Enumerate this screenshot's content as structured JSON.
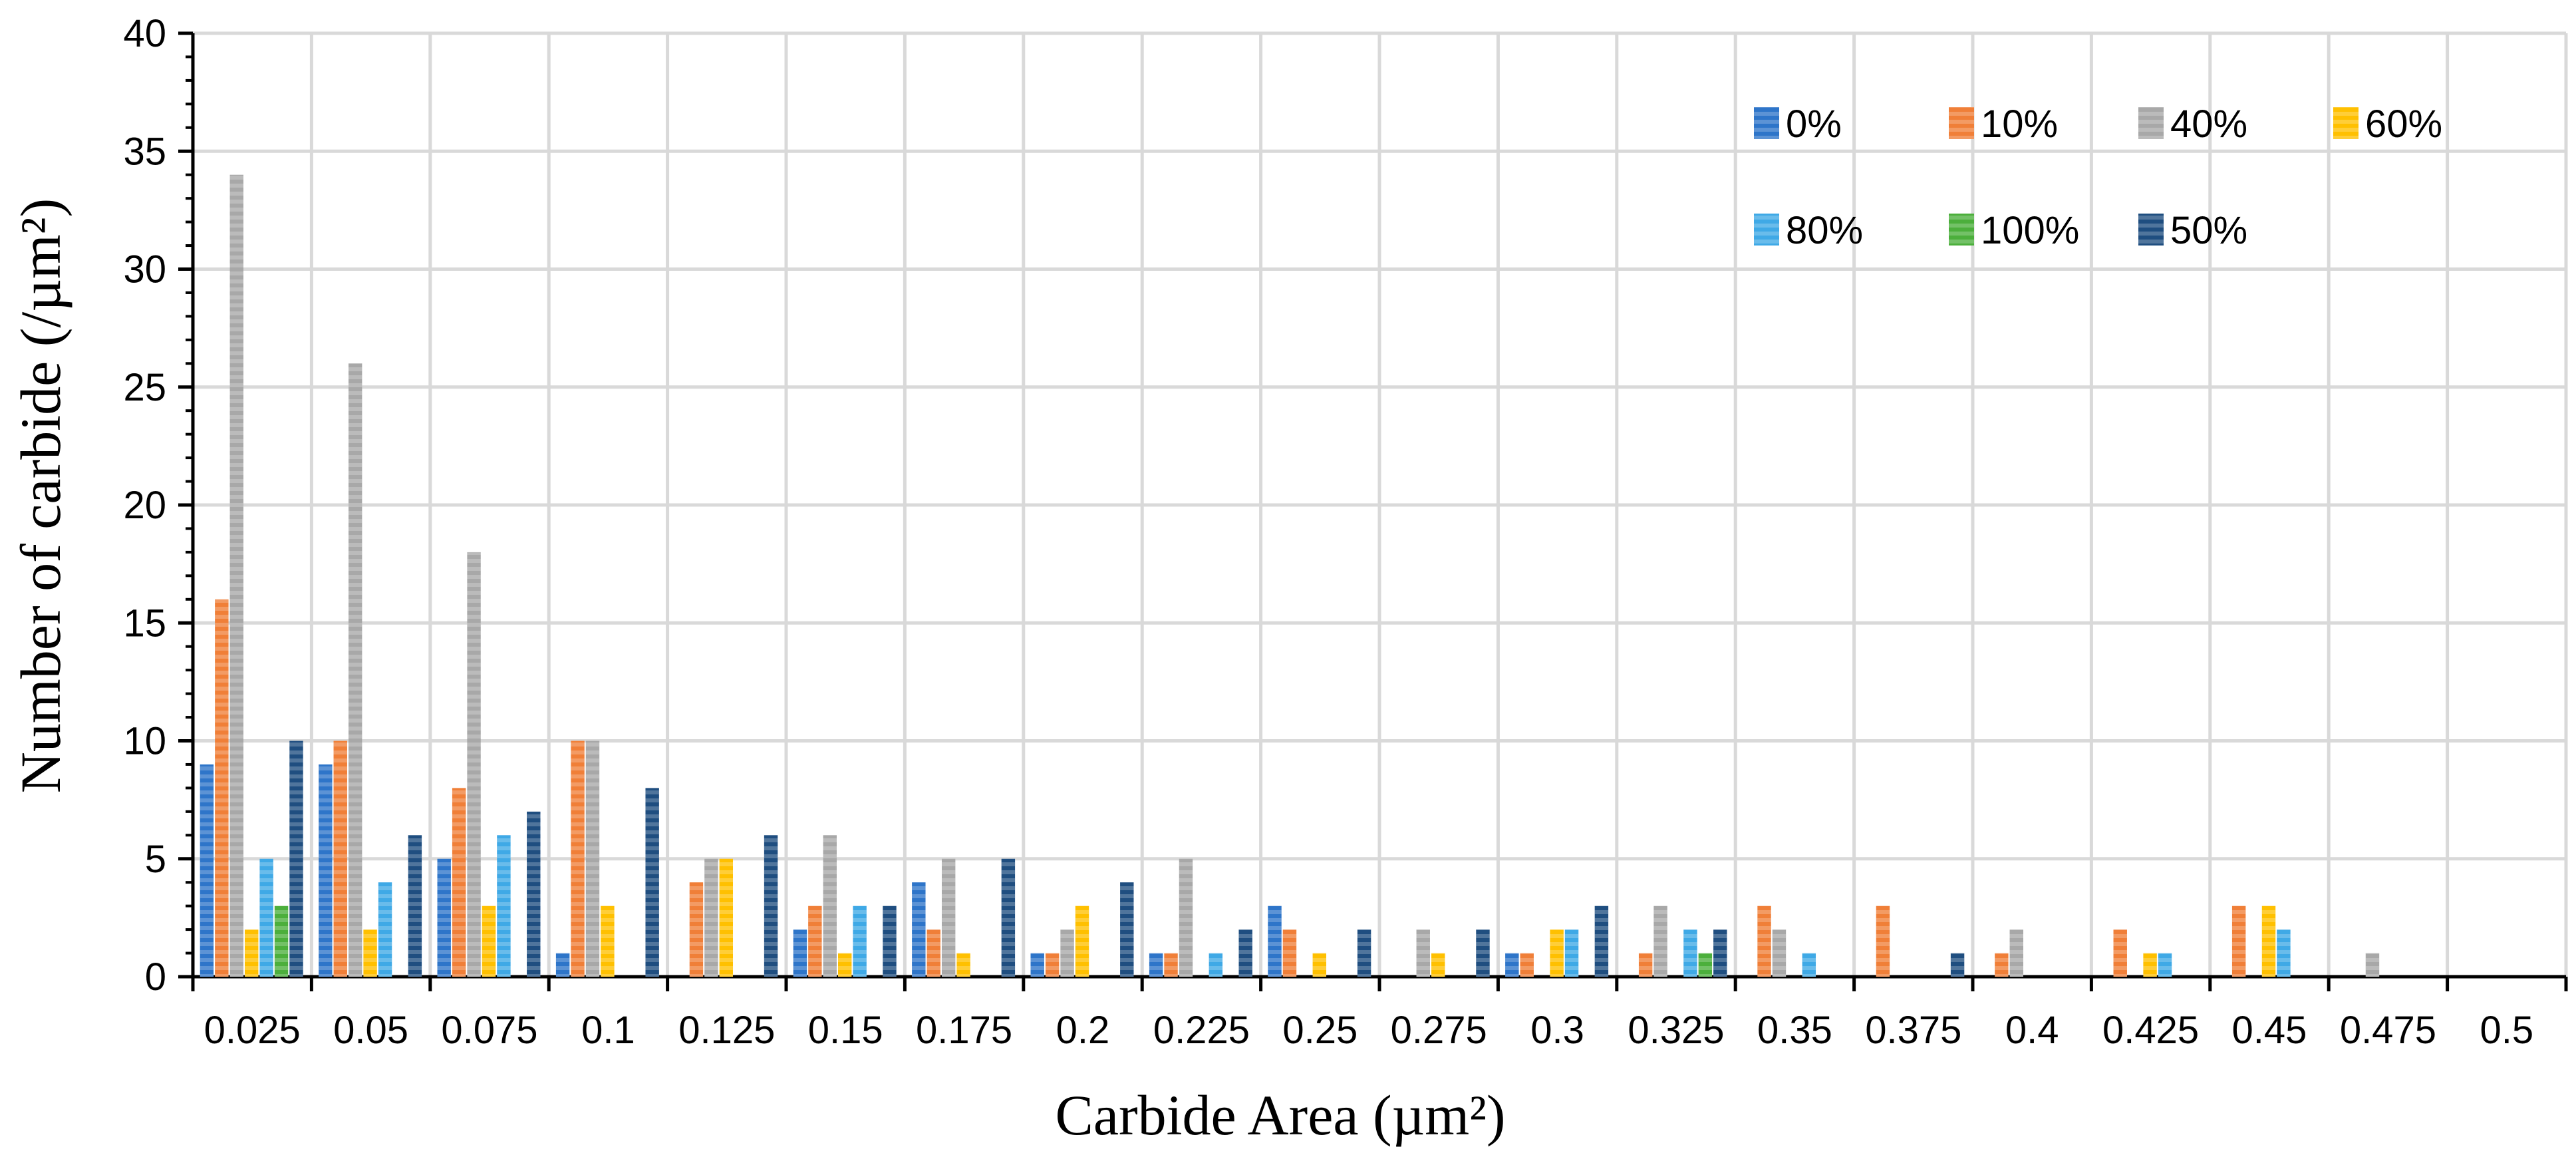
{
  "chart_data": {
    "type": "bar",
    "title": "",
    "xlabel": "Carbide Area (µm²)",
    "ylabel": "Number of carbide (/µm²)",
    "ylim": [
      0,
      40
    ],
    "yticks": [
      0,
      5,
      10,
      15,
      20,
      25,
      30,
      35,
      40
    ],
    "grid": true,
    "legend_position": "top-right",
    "categories": [
      "0.025",
      "0.05",
      "0.075",
      "0.1",
      "0.125",
      "0.15",
      "0.175",
      "0.2",
      "0.225",
      "0.25",
      "0.275",
      "0.3",
      "0.325",
      "0.35",
      "0.375",
      "0.4",
      "0.425",
      "0.45",
      "0.475",
      "0.5"
    ],
    "series": [
      {
        "name": "0%",
        "color": "#2e75c9",
        "values": [
          9,
          9,
          5,
          1,
          0,
          2,
          4,
          1,
          1,
          3,
          0,
          1,
          0,
          0,
          0,
          0,
          0,
          0,
          0,
          0
        ]
      },
      {
        "name": "10%",
        "color": "#f07f38",
        "values": [
          16,
          10,
          8,
          10,
          4,
          3,
          2,
          1,
          1,
          2,
          0,
          1,
          1,
          3,
          3,
          1,
          2,
          3,
          0,
          0
        ]
      },
      {
        "name": "40%",
        "color": "#a8a8a8",
        "values": [
          34,
          26,
          18,
          10,
          5,
          6,
          5,
          2,
          5,
          0,
          2,
          0,
          3,
          2,
          0,
          2,
          0,
          0,
          1,
          0
        ]
      },
      {
        "name": "60%",
        "color": "#ffc000",
        "values": [
          2,
          2,
          3,
          3,
          5,
          1,
          1,
          3,
          0,
          1,
          1,
          2,
          0,
          0,
          0,
          0,
          1,
          3,
          0,
          0
        ]
      },
      {
        "name": "80%",
        "color": "#3fa9e6",
        "values": [
          5,
          4,
          6,
          0,
          0,
          3,
          0,
          0,
          1,
          0,
          0,
          2,
          2,
          1,
          0,
          0,
          1,
          2,
          0,
          0
        ]
      },
      {
        "name": "100%",
        "color": "#4caf3c",
        "values": [
          3,
          0,
          0,
          0,
          0,
          0,
          0,
          0,
          0,
          0,
          0,
          0,
          1,
          0,
          0,
          0,
          0,
          0,
          0,
          0
        ]
      },
      {
        "name": "50%",
        "color": "#1f4e80",
        "values": [
          10,
          6,
          7,
          8,
          6,
          3,
          5,
          4,
          2,
          2,
          2,
          3,
          2,
          0,
          1,
          0,
          0,
          0,
          0,
          0
        ]
      }
    ]
  }
}
